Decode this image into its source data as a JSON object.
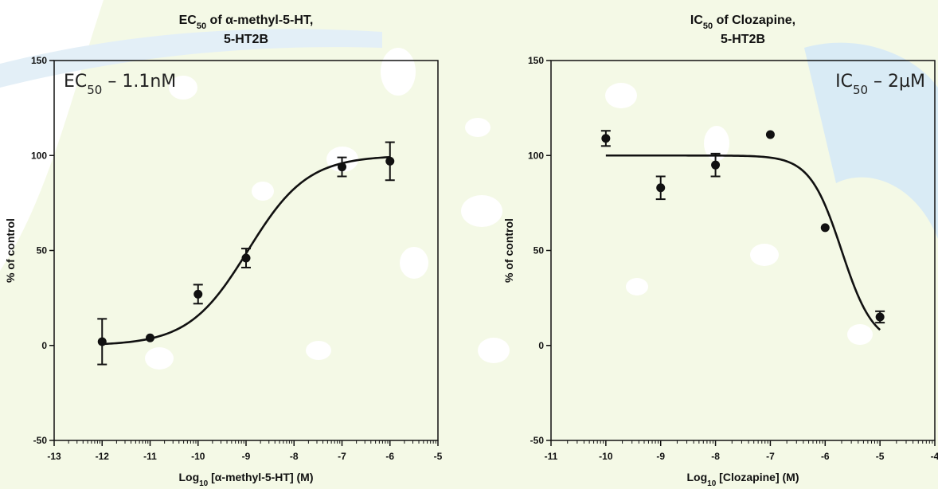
{
  "colors": {
    "background_blob": "#f4f9e6",
    "background_stripe": "#d9ebf5",
    "spots": "#ffffff",
    "ink": "#111111"
  },
  "chart_data": [
    {
      "type": "scatter",
      "title_line1": "EC50 of α-methyl-5-HT,",
      "title_line2": "5-HT2B",
      "xlabel": "Log10 [α-methyl-5-HT] (M)",
      "ylabel": "% of control",
      "annotation": "EC50 – 1.1nM",
      "xlim": [
        -13,
        -5
      ],
      "ylim": [
        -50,
        150
      ],
      "x_ticks": [
        -13,
        -12,
        -11,
        -10,
        -9,
        -8,
        -7,
        -6,
        -5
      ],
      "y_ticks": [
        -50,
        0,
        50,
        100,
        150
      ],
      "points": [
        {
          "x": -12,
          "y": 2,
          "err": 12
        },
        {
          "x": -11,
          "y": 4,
          "err": 0
        },
        {
          "x": -10,
          "y": 27,
          "err": 5
        },
        {
          "x": -9,
          "y": 46,
          "err": 5
        },
        {
          "x": -7,
          "y": 94,
          "err": 5
        },
        {
          "x": -6,
          "y": 97,
          "err": 10
        }
      ],
      "fit": {
        "bottom": 0,
        "top": 100,
        "logEC50": -8.96,
        "hill": 0.7
      },
      "fit_range": [
        -12,
        -6
      ]
    },
    {
      "type": "scatter",
      "title_line1": "IC50 of Clozapine,",
      "title_line2": "5-HT2B",
      "xlabel": "Log10 [Clozapine] (M)",
      "ylabel": "% of control",
      "annotation": "IC50 – 2µM",
      "xlim": [
        -11,
        -4
      ],
      "ylim": [
        -50,
        150
      ],
      "x_ticks": [
        -11,
        -10,
        -9,
        -8,
        -7,
        -6,
        -5,
        -4
      ],
      "y_ticks": [
        -50,
        0,
        50,
        100,
        150
      ],
      "points": [
        {
          "x": -10,
          "y": 109,
          "err": 4
        },
        {
          "x": -9,
          "y": 83,
          "err": 6
        },
        {
          "x": -8,
          "y": 95,
          "err": 6
        },
        {
          "x": -7,
          "y": 111,
          "err": 0
        },
        {
          "x": -6,
          "y": 62,
          "err": 0
        },
        {
          "x": -5,
          "y": 15,
          "err": 3
        }
      ],
      "fit": {
        "bottom": 0,
        "top": 100,
        "logIC50": -5.7,
        "hill": 1.5
      },
      "fit_range": [
        -10,
        -5
      ]
    }
  ]
}
